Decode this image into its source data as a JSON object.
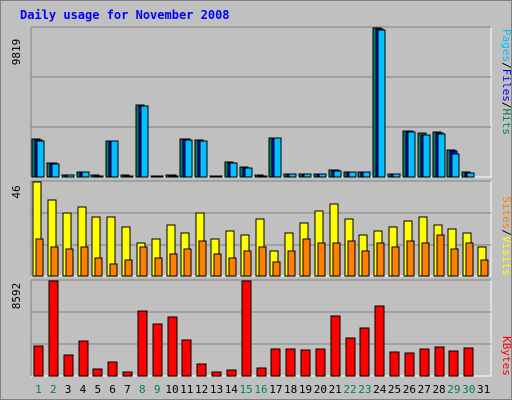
{
  "title": "Daily usage for November 2008",
  "colors": {
    "hits": "#00805c",
    "files": "#0000ff",
    "pages": "#00c0ff",
    "visits": "#ffff00",
    "sites": "#ff8000",
    "kbytes": "#ff0000",
    "weekend_day": "#00805c",
    "weekday": "#000000",
    "slash": "#000000"
  },
  "legend": {
    "top": [
      "Pages",
      "/",
      "Files",
      "/",
      "Hits"
    ],
    "middle": [
      "Sites",
      "/",
      "Visits"
    ],
    "bottom": [
      "KBytes"
    ]
  },
  "chart_data": {
    "type": "bar",
    "title": "Daily usage for November 2008",
    "categories": [
      "1",
      "2",
      "3",
      "4",
      "5",
      "6",
      "7",
      "8",
      "9",
      "10",
      "11",
      "12",
      "13",
      "14",
      "15",
      "16",
      "17",
      "18",
      "19",
      "20",
      "21",
      "22",
      "23",
      "24",
      "25",
      "26",
      "27",
      "28",
      "29",
      "30",
      "31"
    ],
    "weekend_days": [
      "1",
      "2",
      "8",
      "9",
      "15",
      "16",
      "22",
      "23",
      "29",
      "30"
    ],
    "panels": [
      {
        "name": "Hits / Files / Pages",
        "max_label": "9819",
        "ymax": 9819,
        "series": [
          {
            "name": "Hits",
            "values": [
              2500,
              950,
              130,
              330,
              100,
              2400,
              100,
              4750,
              90,
              110,
              2500,
              2450,
              90,
              980,
              650,
              100,
              2600,
              200,
              200,
              210,
              450,
              350,
              360,
              9819,
              200,
              3050,
              2900,
              2950,
              1800,
              310,
              0
            ]
          },
          {
            "name": "Files",
            "values": [
              2450,
              900,
              120,
              320,
              90,
              2400,
              90,
              4700,
              80,
              100,
              2500,
              2400,
              80,
              950,
              620,
              90,
              2550,
              190,
              190,
              200,
              430,
              320,
              340,
              9750,
              180,
              3000,
              2800,
              2900,
              1700,
              290,
              0
            ]
          },
          {
            "name": "Pages",
            "values": [
              2400,
              850,
              110,
              310,
              80,
              2350,
              80,
              4650,
              80,
              90,
              2450,
              2400,
              80,
              930,
              600,
              80,
              2550,
              180,
              180,
              190,
              420,
              310,
              330,
              9700,
              170,
              2950,
              2800,
              2850,
              1500,
              280,
              0
            ]
          }
        ]
      },
      {
        "name": "Visits / Sites",
        "max_label": "46",
        "ymax": 46,
        "series": [
          {
            "name": "Visits",
            "values": [
              46,
              37,
              31,
              34,
              29,
              29,
              24,
              16,
              18,
              25,
              21,
              31,
              18,
              22,
              20,
              28,
              12,
              21,
              26,
              32,
              35,
              28,
              20,
              22,
              24,
              27,
              29,
              25,
              23,
              21,
              14
            ]
          },
          {
            "name": "Sites",
            "values": [
              18,
              14,
              13,
              14,
              9,
              6,
              8,
              14,
              9,
              11,
              13,
              17,
              11,
              9,
              12,
              14,
              7,
              12,
              18,
              16,
              16,
              17,
              12,
              16,
              14,
              17,
              16,
              20,
              13,
              16,
              8
            ]
          }
        ]
      },
      {
        "name": "KBytes",
        "max_label": "8592",
        "ymax": 8592,
        "series": [
          {
            "name": "KBytes",
            "values": [
              2700,
              8592,
              1900,
              3200,
              660,
              1250,
              340,
              5900,
              4700,
              5300,
              3300,
              1100,
              400,
              570,
              8592,
              750,
              2450,
              2400,
              2350,
              2400,
              5400,
              3400,
              4300,
              6300,
              2150,
              2100,
              2400,
              2650,
              2300,
              2550,
              0
            ]
          }
        ]
      }
    ]
  }
}
